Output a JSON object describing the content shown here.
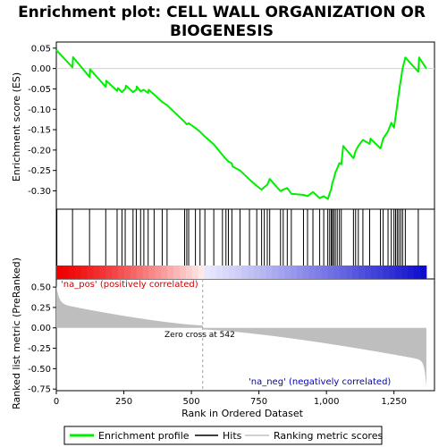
{
  "chart_data": {
    "type": "line",
    "title_lines": [
      "Enrichment plot: CELL WALL ORGANIZATION OR",
      "BIOGENESIS"
    ],
    "xlabel": "Rank in Ordered Dataset",
    "ylabel_top": "Enrichment score (ES)",
    "ylabel_bottom": "Ranked list metric (PreRanked)",
    "xlim": [
      0,
      1400
    ],
    "x_ticks": [
      0,
      250,
      500,
      750,
      1000,
      1250
    ],
    "x_tick_labels": [
      "0",
      "250",
      "500",
      "750",
      "1,000",
      "1,250"
    ],
    "es_ylim": [
      -0.345,
      0.065
    ],
    "es_ticks": [
      0.05,
      0.0,
      -0.05,
      -0.1,
      -0.15,
      -0.2,
      -0.25,
      -0.3
    ],
    "es_tick_labels": [
      "0.05",
      "0.00",
      "-0.05",
      "-0.10",
      "-0.15",
      "-0.20",
      "-0.25",
      "-0.30"
    ],
    "metric_ylim": [
      -0.77,
      0.6
    ],
    "metric_ticks": [
      0.5,
      0.25,
      0.0,
      -0.25,
      -0.5,
      -0.75
    ],
    "metric_tick_labels": [
      "0.50",
      "0.25",
      "0.00",
      "-0.25",
      "-0.50",
      "-0.75"
    ],
    "n_genes": 1370,
    "zero_cross": 542,
    "zero_cross_label": "Zero cross at 542",
    "pos_label": "'na_pos' (positively correlated)",
    "neg_label": "'na_neg' (negatively correlated)",
    "hits": [
      2,
      60,
      123,
      183,
      225,
      243,
      255,
      284,
      296,
      312,
      324,
      340,
      362,
      392,
      410,
      475,
      483,
      490,
      515,
      532,
      550,
      583,
      615,
      628,
      637,
      650,
      680,
      715,
      742,
      760,
      770,
      781,
      790,
      830,
      840,
      855,
      870,
      915,
      930,
      950,
      975,
      990,
      1005,
      1012,
      1018,
      1022,
      1027,
      1033,
      1040,
      1048,
      1055,
      1100,
      1108,
      1118,
      1135,
      1160,
      1200,
      1210,
      1228,
      1240,
      1250,
      1256,
      1262,
      1268,
      1275,
      1282,
      1292,
      1340
    ],
    "es_points": [
      [
        0,
        0.045
      ],
      [
        60,
        0.003
      ],
      [
        62,
        0.028
      ],
      [
        123,
        -0.021
      ],
      [
        125,
        -0.002
      ],
      [
        183,
        -0.045
      ],
      [
        185,
        -0.03
      ],
      [
        225,
        -0.055
      ],
      [
        228,
        -0.048
      ],
      [
        243,
        -0.058
      ],
      [
        255,
        -0.05
      ],
      [
        258,
        -0.042
      ],
      [
        284,
        -0.058
      ],
      [
        296,
        -0.052
      ],
      [
        298,
        -0.044
      ],
      [
        312,
        -0.056
      ],
      [
        324,
        -0.052
      ],
      [
        340,
        -0.06
      ],
      [
        342,
        -0.052
      ],
      [
        362,
        -0.064
      ],
      [
        392,
        -0.082
      ],
      [
        410,
        -0.09
      ],
      [
        475,
        -0.131
      ],
      [
        483,
        -0.137
      ],
      [
        490,
        -0.134
      ],
      [
        515,
        -0.146
      ],
      [
        532,
        -0.155
      ],
      [
        550,
        -0.167
      ],
      [
        583,
        -0.186
      ],
      [
        615,
        -0.212
      ],
      [
        628,
        -0.222
      ],
      [
        637,
        -0.228
      ],
      [
        650,
        -0.233
      ],
      [
        652,
        -0.24
      ],
      [
        680,
        -0.25
      ],
      [
        715,
        -0.272
      ],
      [
        742,
        -0.288
      ],
      [
        760,
        -0.297
      ],
      [
        770,
        -0.291
      ],
      [
        781,
        -0.285
      ],
      [
        790,
        -0.271
      ],
      [
        830,
        -0.301
      ],
      [
        840,
        -0.297
      ],
      [
        855,
        -0.293
      ],
      [
        870,
        -0.307
      ],
      [
        915,
        -0.31
      ],
      [
        930,
        -0.313
      ],
      [
        950,
        -0.303
      ],
      [
        975,
        -0.318
      ],
      [
        990,
        -0.313
      ],
      [
        1005,
        -0.32
      ],
      [
        1012,
        -0.306
      ],
      [
        1018,
        -0.295
      ],
      [
        1022,
        -0.28
      ],
      [
        1027,
        -0.271
      ],
      [
        1033,
        -0.255
      ],
      [
        1040,
        -0.245
      ],
      [
        1048,
        -0.232
      ],
      [
        1055,
        -0.235
      ],
      [
        1062,
        -0.19
      ],
      [
        1100,
        -0.22
      ],
      [
        1108,
        -0.202
      ],
      [
        1118,
        -0.19
      ],
      [
        1135,
        -0.175
      ],
      [
        1160,
        -0.185
      ],
      [
        1163,
        -0.172
      ],
      [
        1200,
        -0.196
      ],
      [
        1210,
        -0.172
      ],
      [
        1228,
        -0.154
      ],
      [
        1240,
        -0.133
      ],
      [
        1250,
        -0.145
      ],
      [
        1256,
        -0.118
      ],
      [
        1262,
        -0.09
      ],
      [
        1268,
        -0.06
      ],
      [
        1275,
        -0.03
      ],
      [
        1282,
        0.0
      ],
      [
        1292,
        0.027
      ],
      [
        1340,
        -0.008
      ],
      [
        1343,
        0.027
      ],
      [
        1370,
        0.0
      ]
    ]
  },
  "legend": {
    "items": [
      {
        "label": "Enrichment profile",
        "color": "#00ee00"
      },
      {
        "label": "Hits",
        "color": "#000000"
      },
      {
        "label": "Ranking metric scores",
        "color": "#c0c0c0"
      }
    ]
  },
  "colors": {
    "es_line": "#00ee00",
    "hits": "#000000",
    "metric_fill": "#bebebe",
    "zero_line": "#a0a0a0",
    "band_pos": "#ee0000",
    "band_neg": "#0000cc"
  }
}
